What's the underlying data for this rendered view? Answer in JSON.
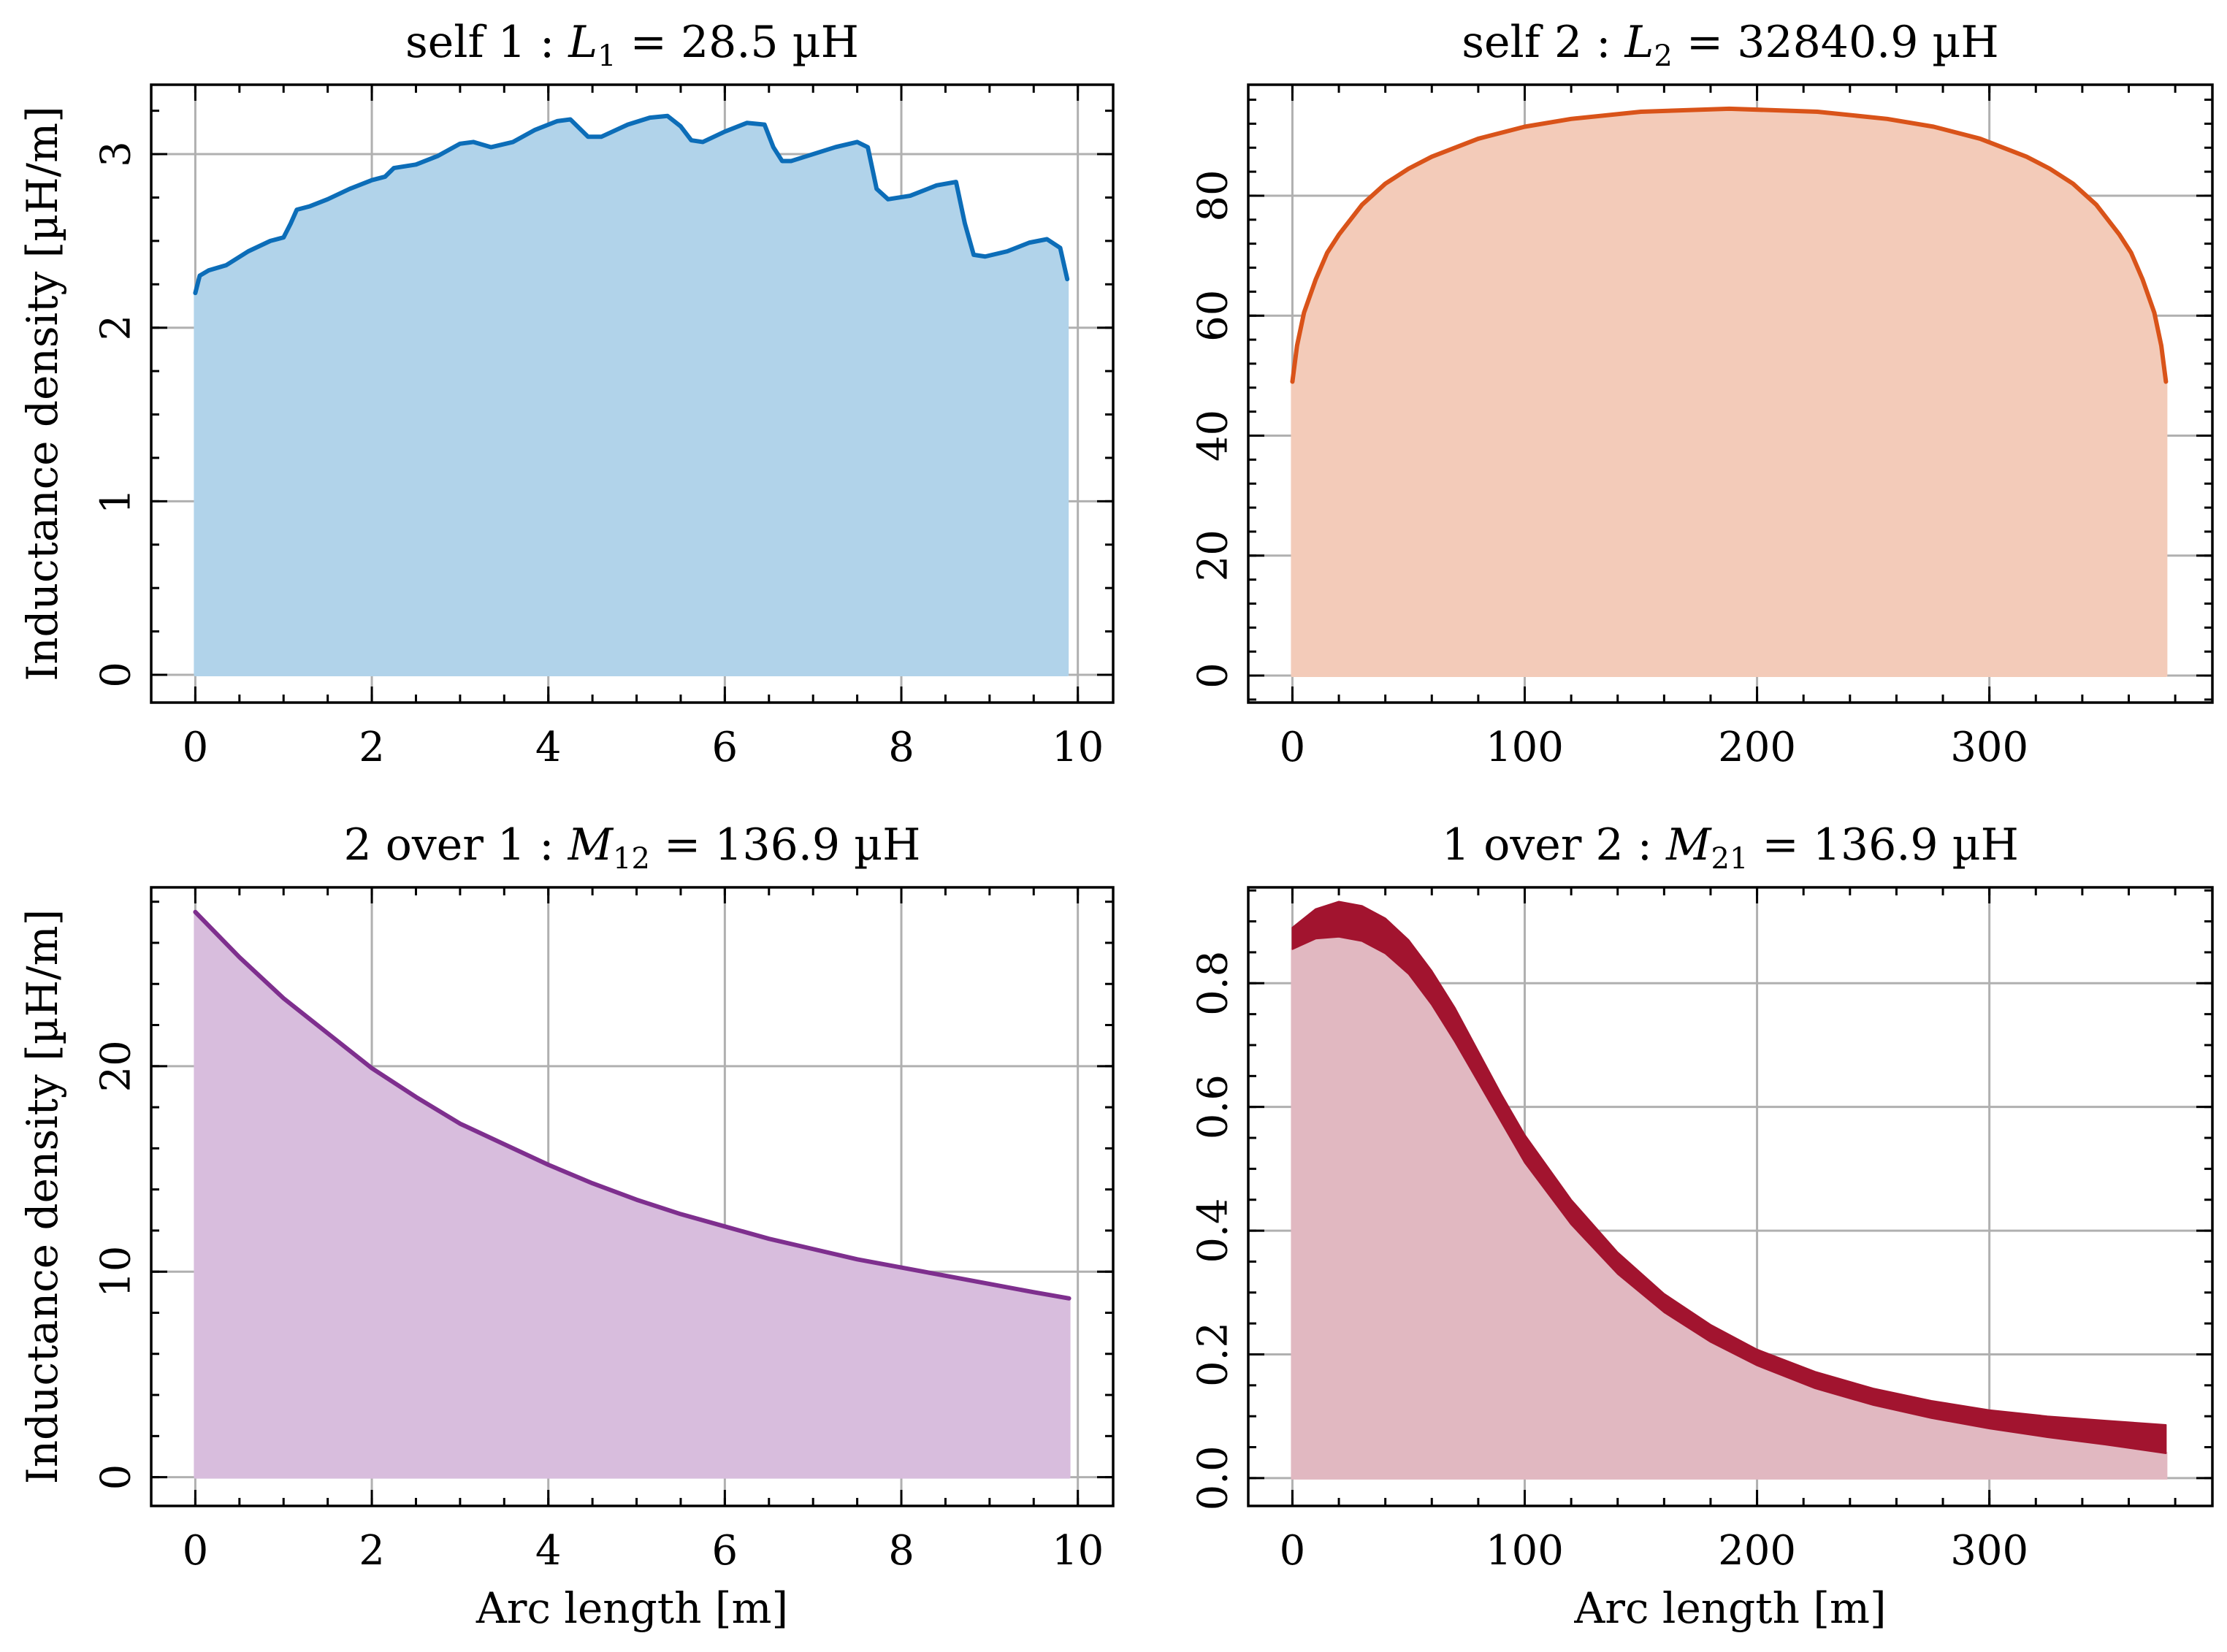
{
  "figure": {
    "ylabel_shared": "Inductance density [µH/m]",
    "xlabel_shared": "Arc length [m]"
  },
  "chart_data": [
    {
      "id": "p1",
      "type": "area",
      "title_pre": "self 1 : ",
      "title_sym": "L",
      "title_sub": "1",
      "title_rest": " = 28.5 µH",
      "ylabel": "Inductance density [µH/m]",
      "xlabel": "",
      "xlim": [
        -0.5,
        10.4
      ],
      "ylim": [
        -0.16,
        3.4
      ],
      "xticks": [
        0,
        2,
        4,
        6,
        8,
        10
      ],
      "xticklabels": [
        "0",
        "2",
        "4",
        "6",
        "8",
        "10"
      ],
      "yticks": [
        0,
        1,
        2,
        3
      ],
      "yticklabels": [
        "0",
        "1",
        "2",
        "3"
      ],
      "line_color": "#0C6DB8",
      "fill_color": "#B1D3EA",
      "x": [
        0,
        0.05,
        0.15,
        0.35,
        0.6,
        0.85,
        1.0,
        1.08,
        1.15,
        1.3,
        1.5,
        1.75,
        2.0,
        2.15,
        2.25,
        2.5,
        2.75,
        3.0,
        3.15,
        3.35,
        3.6,
        3.85,
        4.1,
        4.25,
        4.35,
        4.45,
        4.6,
        4.9,
        5.15,
        5.35,
        5.5,
        5.62,
        5.75,
        6.0,
        6.25,
        6.45,
        6.55,
        6.65,
        6.75,
        7.0,
        7.25,
        7.5,
        7.62,
        7.72,
        7.85,
        8.1,
        8.4,
        8.62,
        8.72,
        8.82,
        8.95,
        9.2,
        9.45,
        9.65,
        9.8,
        9.88
      ],
      "y": [
        2.2,
        2.3,
        2.33,
        2.36,
        2.44,
        2.5,
        2.52,
        2.6,
        2.68,
        2.7,
        2.74,
        2.8,
        2.85,
        2.87,
        2.92,
        2.94,
        2.99,
        3.06,
        3.07,
        3.04,
        3.07,
        3.14,
        3.19,
        3.2,
        3.15,
        3.1,
        3.1,
        3.17,
        3.21,
        3.22,
        3.16,
        3.08,
        3.07,
        3.13,
        3.18,
        3.17,
        3.04,
        2.96,
        2.96,
        3.0,
        3.04,
        3.07,
        3.04,
        2.8,
        2.74,
        2.76,
        2.82,
        2.84,
        2.6,
        2.42,
        2.41,
        2.44,
        2.49,
        2.51,
        2.46,
        2.28
      ]
    },
    {
      "id": "p2",
      "type": "area",
      "title_pre": "self 2 : ",
      "title_sym": "L",
      "title_sub": "2",
      "title_rest": " = 32840.9 µH",
      "ylabel": "",
      "xlabel": "",
      "xlim": [
        -19,
        396
      ],
      "ylim": [
        -4.5,
        98.5
      ],
      "xticks": [
        0,
        100,
        200,
        300
      ],
      "xticklabels": [
        "0",
        "100",
        "200",
        "300"
      ],
      "yticks": [
        0,
        20,
        40,
        60,
        80
      ],
      "yticklabels": [
        "0",
        "20",
        "40",
        "60",
        "80"
      ],
      "line_color": "#D95319",
      "fill_color": "#F3CBB9",
      "x": [
        0,
        2,
        5,
        10,
        15,
        20,
        30,
        40,
        50,
        60,
        80,
        100,
        120,
        150,
        188,
        226,
        256,
        276,
        296,
        316,
        326,
        336,
        346,
        356,
        361,
        366,
        371,
        374,
        376
      ],
      "y": [
        49,
        55,
        60.5,
        66,
        70.5,
        73.5,
        78.5,
        82,
        84.5,
        86.5,
        89.5,
        91.5,
        92.8,
        94,
        94.5,
        94,
        92.8,
        91.5,
        89.5,
        86.5,
        84.5,
        82,
        78.5,
        73.5,
        70.5,
        66,
        60.5,
        55,
        49
      ]
    },
    {
      "id": "p3",
      "type": "area",
      "title_pre": "2 over 1 : ",
      "title_sym": "M",
      "title_sub": "12",
      "title_rest": " = 136.9 µH",
      "ylabel": "Inductance density [µH/m]",
      "xlabel": "Arc length [m]",
      "xlim": [
        -0.5,
        10.4
      ],
      "ylim": [
        -1.4,
        28.7
      ],
      "xticks": [
        0,
        2,
        4,
        6,
        8,
        10
      ],
      "xticklabels": [
        "0",
        "2",
        "4",
        "6",
        "8",
        "10"
      ],
      "yticks": [
        0,
        10,
        20
      ],
      "yticklabels": [
        "0",
        "10",
        "20"
      ],
      "line_color": "#7E2F8E",
      "fill_color": "#D8BDDD",
      "x": [
        0,
        0.5,
        1.0,
        1.5,
        2.0,
        2.5,
        3.0,
        3.5,
        4.0,
        4.5,
        5.0,
        5.5,
        6.0,
        6.5,
        7.0,
        7.5,
        8.0,
        8.5,
        9.0,
        9.5,
        9.9
      ],
      "y": [
        27.5,
        25.3,
        23.3,
        21.6,
        19.9,
        18.5,
        17.2,
        16.2,
        15.2,
        14.3,
        13.5,
        12.8,
        12.2,
        11.6,
        11.1,
        10.6,
        10.2,
        9.8,
        9.4,
        9.0,
        8.7
      ]
    },
    {
      "id": "p4",
      "type": "area",
      "title_pre": "1 over 2 : ",
      "title_sym": "M",
      "title_sub": "21",
      "title_rest": " = 136.9 µH",
      "ylabel": "",
      "xlabel": "Arc length [m]",
      "xlim": [
        -19,
        396
      ],
      "ylim": [
        -0.045,
        0.955
      ],
      "xticks": [
        0,
        100,
        200,
        300
      ],
      "xticklabels": [
        "0",
        "100",
        "200",
        "300"
      ],
      "yticks": [
        0.0,
        0.2,
        0.4,
        0.6,
        0.8
      ],
      "yticklabels": [
        "0.0",
        "0.2",
        "0.4",
        "0.6",
        "0.8"
      ],
      "line_color": "#A2142F",
      "fill_color": "#E1B8C1",
      "x": [
        0,
        10,
        20,
        30,
        40,
        50,
        60,
        70,
        80,
        90,
        100,
        120,
        140,
        160,
        180,
        200,
        225,
        250,
        275,
        300,
        325,
        350,
        376
      ],
      "y_lower": [
        0.855,
        0.872,
        0.875,
        0.868,
        0.848,
        0.815,
        0.765,
        0.705,
        0.64,
        0.575,
        0.51,
        0.41,
        0.33,
        0.268,
        0.22,
        0.182,
        0.145,
        0.118,
        0.097,
        0.08,
        0.066,
        0.054,
        0.04
      ],
      "y_upper": [
        0.89,
        0.92,
        0.932,
        0.925,
        0.905,
        0.87,
        0.82,
        0.76,
        0.69,
        0.62,
        0.555,
        0.45,
        0.365,
        0.298,
        0.248,
        0.208,
        0.172,
        0.145,
        0.125,
        0.11,
        0.1,
        0.093,
        0.086
      ]
    }
  ]
}
